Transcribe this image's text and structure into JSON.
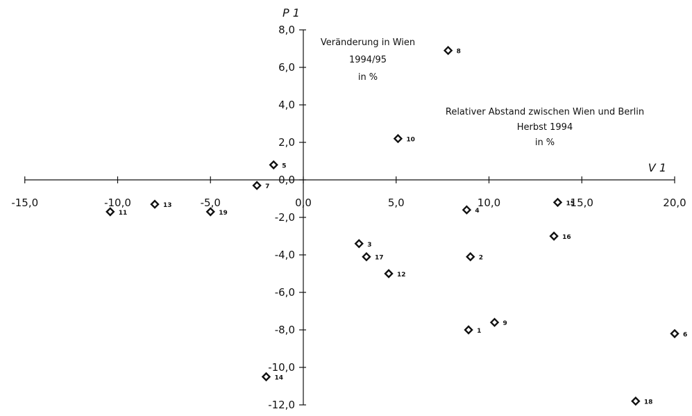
{
  "chart_data": {
    "type": "scatter",
    "xlabel": "V 1",
    "ylabel": "P 1",
    "xlim": [
      -15,
      20
    ],
    "ylim": [
      -12,
      8
    ],
    "xticks": [
      "-15,0",
      "-10,0",
      "-5,0",
      "0,0",
      "5,0",
      "10,0",
      "15,0",
      "20,0"
    ],
    "xtick_values": [
      -15,
      -10,
      -5,
      0,
      5,
      10,
      15,
      20
    ],
    "yticks": [
      "8,0",
      "6,0",
      "4,0",
      "2,0",
      "0,0",
      "-2,0",
      "-4,0",
      "-6,0",
      "-8,0",
      "-10,0",
      "-12,0"
    ],
    "ytick_values": [
      8,
      6,
      4,
      2,
      0,
      -2,
      -4,
      -6,
      -8,
      -10,
      -12
    ],
    "grid": false,
    "marker": "diamond",
    "annotations": {
      "y_axis_note": [
        "Veränderung in Wien",
        "1994/95",
        "in %"
      ],
      "x_axis_note": [
        "Relativer Abstand zwischen Wien und Berlin",
        "Herbst 1994",
        "in %"
      ]
    },
    "points": [
      {
        "label": "1",
        "x": 8.9,
        "y": -8.0
      },
      {
        "label": "2",
        "x": 9.0,
        "y": -4.1
      },
      {
        "label": "3",
        "x": 3.0,
        "y": -3.4
      },
      {
        "label": "4",
        "x": 8.8,
        "y": -1.6
      },
      {
        "label": "5",
        "x": -1.6,
        "y": 0.8
      },
      {
        "label": "6",
        "x": 20.0,
        "y": -8.2
      },
      {
        "label": "7",
        "x": -2.5,
        "y": -0.3
      },
      {
        "label": "8",
        "x": 7.8,
        "y": 6.9
      },
      {
        "label": "9",
        "x": 10.3,
        "y": -7.6
      },
      {
        "label": "10",
        "x": 5.1,
        "y": 2.2
      },
      {
        "label": "11",
        "x": -10.4,
        "y": -1.7
      },
      {
        "label": "12",
        "x": 4.6,
        "y": -5.0
      },
      {
        "label": "13",
        "x": -8.0,
        "y": -1.3
      },
      {
        "label": "14",
        "x": -2.0,
        "y": -10.5
      },
      {
        "label": "15",
        "x": 13.7,
        "y": -1.2
      },
      {
        "label": "16",
        "x": 13.5,
        "y": -3.0
      },
      {
        "label": "17",
        "x": 3.4,
        "y": -4.1
      },
      {
        "label": "18",
        "x": 17.9,
        "y": -11.8
      },
      {
        "label": "19",
        "x": -5.0,
        "y": -1.7
      }
    ]
  }
}
